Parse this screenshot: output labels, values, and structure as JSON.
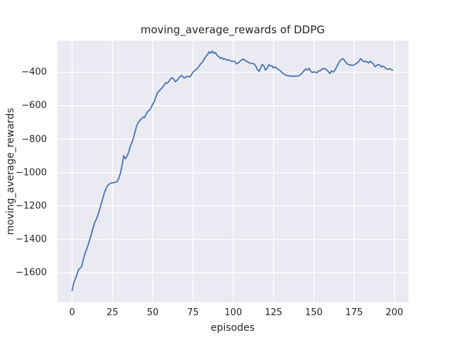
{
  "figure": {
    "title": "moving_average_rewards of DDPG",
    "xlabel": "episodes",
    "ylabel": "moving_average_rewards"
  },
  "chart_data": {
    "type": "line",
    "title": "moving_average_rewards of DDPG",
    "xlabel": "episodes",
    "ylabel": "moving_average_rewards",
    "x_ticks": [
      0,
      25,
      50,
      75,
      100,
      125,
      150,
      175,
      200
    ],
    "x_tick_labels": [
      "0",
      "25",
      "50",
      "75",
      "100",
      "125",
      "150",
      "175",
      "200"
    ],
    "y_ticks": [
      -400,
      -600,
      -800,
      -1000,
      -1200,
      -1400,
      -1600
    ],
    "y_tick_labels": [
      "−400",
      "−600",
      "−800",
      "−1000",
      "−1200",
      "−1400",
      "−1600"
    ],
    "xlim": [
      -9.1,
      208.8
    ],
    "ylim": [
      -1774,
      -211
    ],
    "grid": true,
    "legend_position": "none",
    "style": "seaborn-darkgrid",
    "colors": {
      "plot_background": "#eaeaf2",
      "figure_background": "#ffffff",
      "gridline": "#ffffff",
      "text": "#262626",
      "line": "#4c72b0"
    },
    "series": [
      {
        "name": "moving_average_rewards",
        "color": "#4c72b0",
        "x_start": 0,
        "x_step": 1,
        "values": [
          -1705,
          -1658,
          -1636,
          -1608,
          -1580,
          -1571,
          -1560,
          -1516,
          -1483,
          -1458,
          -1430,
          -1398,
          -1365,
          -1330,
          -1300,
          -1278,
          -1254,
          -1222,
          -1190,
          -1155,
          -1120,
          -1095,
          -1078,
          -1068,
          -1063,
          -1060,
          -1059,
          -1057,
          -1053,
          -1032,
          -1003,
          -955,
          -898,
          -917,
          -903,
          -880,
          -845,
          -822,
          -795,
          -757,
          -722,
          -700,
          -690,
          -676,
          -667,
          -671,
          -648,
          -633,
          -626,
          -612,
          -590,
          -575,
          -545,
          -521,
          -511,
          -502,
          -491,
          -478,
          -462,
          -466,
          -455,
          -441,
          -432,
          -440,
          -456,
          -449,
          -438,
          -425,
          -418,
          -431,
          -433,
          -425,
          -424,
          -428,
          -415,
          -399,
          -390,
          -383,
          -373,
          -360,
          -347,
          -337,
          -320,
          -305,
          -294,
          -277,
          -286,
          -272,
          -287,
          -281,
          -300,
          -305,
          -317,
          -312,
          -323,
          -319,
          -328,
          -324,
          -330,
          -334,
          -333,
          -336,
          -349,
          -344,
          -336,
          -327,
          -322,
          -325,
          -333,
          -338,
          -343,
          -347,
          -346,
          -351,
          -363,
          -383,
          -395,
          -374,
          -352,
          -362,
          -387,
          -376,
          -354,
          -361,
          -362,
          -373,
          -368,
          -376,
          -383,
          -389,
          -399,
          -407,
          -413,
          -418,
          -421,
          -421,
          -424,
          -421,
          -424,
          -421,
          -423,
          -418,
          -411,
          -402,
          -389,
          -380,
          -386,
          -376,
          -392,
          -401,
          -397,
          -400,
          -402,
          -390,
          -391,
          -381,
          -377,
          -378,
          -386,
          -396,
          -407,
          -391,
          -399,
          -389,
          -370,
          -352,
          -334,
          -324,
          -318,
          -328,
          -342,
          -351,
          -356,
          -356,
          -359,
          -355,
          -349,
          -344,
          -334,
          -318,
          -327,
          -337,
          -333,
          -338,
          -344,
          -333,
          -342,
          -351,
          -366,
          -359,
          -352,
          -358,
          -368,
          -362,
          -370,
          -379,
          -382,
          -377,
          -384,
          -387
        ]
      }
    ]
  }
}
